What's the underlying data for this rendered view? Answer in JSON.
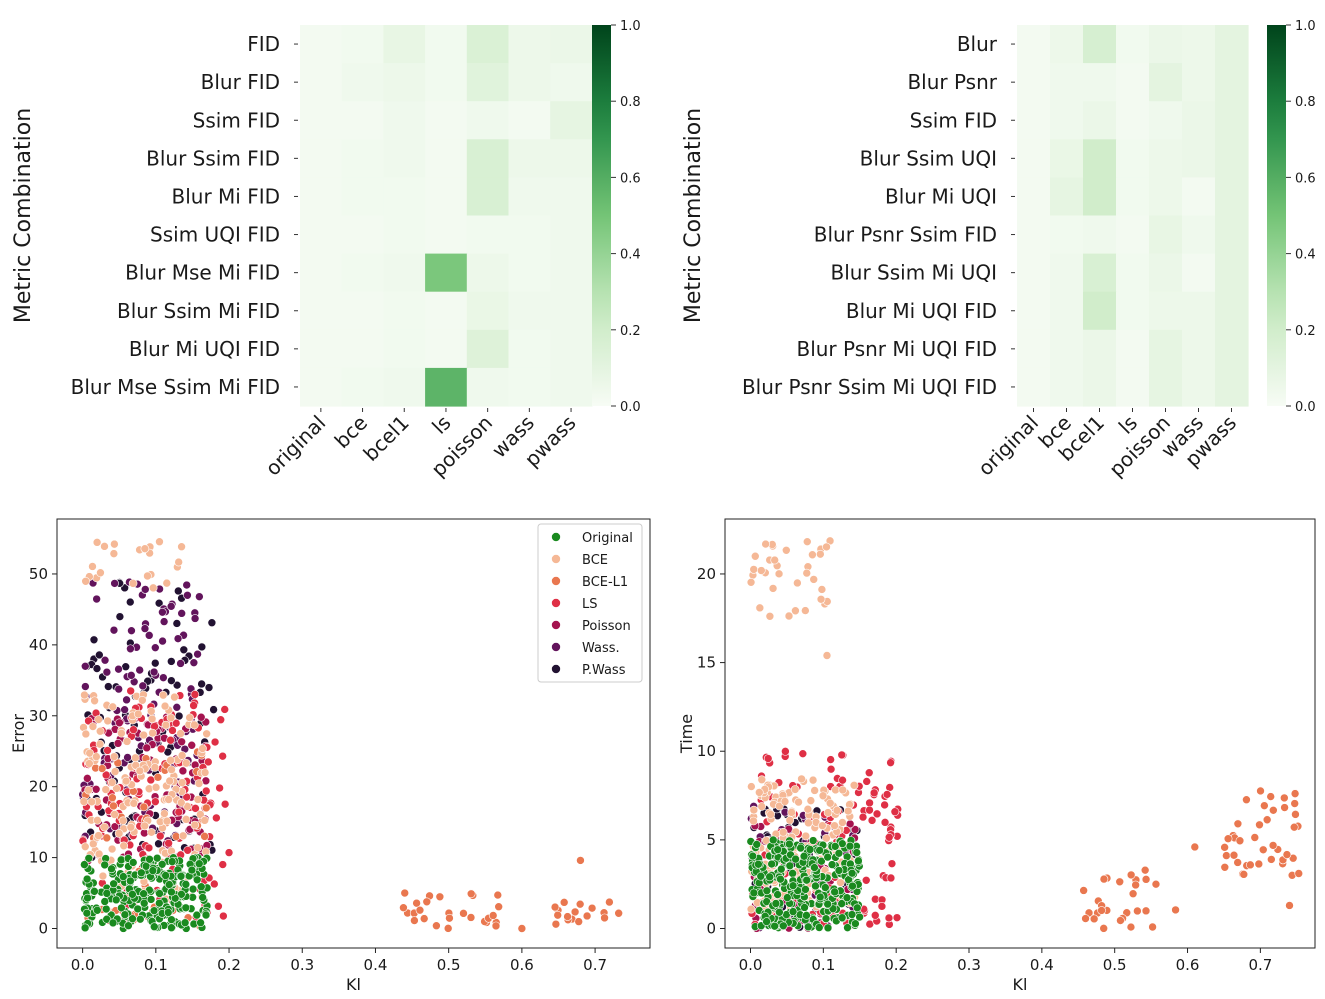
{
  "chart_data": [
    {
      "type": "heatmap",
      "ylabel": "Metric Combination",
      "columns": [
        "original",
        "bce",
        "bcel1",
        "ls",
        "poisson",
        "wass",
        "pwass"
      ],
      "rows": [
        "FID",
        "Blur FID",
        "Ssim FID",
        "Blur Ssim FID",
        "Blur Mi FID",
        "Ssim UQI FID",
        "Blur Mse Mi FID",
        "Blur Ssim Mi FID",
        "Blur Mi UQI FID",
        "Blur Mse Ssim Mi FID"
      ],
      "values": [
        [
          0.02,
          0.03,
          0.08,
          0.03,
          0.15,
          0.05,
          0.06
        ],
        [
          0.02,
          0.04,
          0.05,
          0.03,
          0.12,
          0.05,
          0.04
        ],
        [
          0.02,
          0.02,
          0.04,
          0.02,
          0.04,
          0.02,
          0.09
        ],
        [
          0.02,
          0.03,
          0.04,
          0.02,
          0.16,
          0.05,
          0.05
        ],
        [
          0.02,
          0.03,
          0.03,
          0.02,
          0.16,
          0.04,
          0.04
        ],
        [
          0.02,
          0.02,
          0.03,
          0.02,
          0.03,
          0.03,
          0.04
        ],
        [
          0.02,
          0.03,
          0.04,
          0.48,
          0.05,
          0.03,
          0.04
        ],
        [
          0.02,
          0.02,
          0.03,
          0.02,
          0.07,
          0.04,
          0.04
        ],
        [
          0.02,
          0.02,
          0.03,
          0.02,
          0.13,
          0.03,
          0.04
        ],
        [
          0.02,
          0.03,
          0.04,
          0.57,
          0.04,
          0.03,
          0.04
        ]
      ],
      "colorbar": {
        "min": 0.0,
        "max": 1.0,
        "ticks": [
          "0.0",
          "0.2",
          "0.4",
          "0.6",
          "0.8",
          "1.0"
        ]
      }
    },
    {
      "type": "heatmap",
      "ylabel": "Metric Combination",
      "columns": [
        "original",
        "bce",
        "bcel1",
        "ls",
        "poisson",
        "wass",
        "pwass"
      ],
      "rows": [
        "Blur",
        "Blur Psnr",
        "Ssim FID",
        "Blur Ssim UQI",
        "Blur Mi UQI",
        "Blur Psnr Ssim FID",
        "Blur Ssim Mi UQI",
        "Blur Mi UQI FID",
        "Blur Psnr Mi UQI FID",
        "Blur Psnr Ssim Mi UQI FID"
      ],
      "values": [
        [
          0.02,
          0.05,
          0.17,
          0.03,
          0.06,
          0.05,
          0.1
        ],
        [
          0.02,
          0.04,
          0.04,
          0.02,
          0.1,
          0.05,
          0.1
        ],
        [
          0.02,
          0.04,
          0.06,
          0.02,
          0.04,
          0.06,
          0.1
        ],
        [
          0.02,
          0.07,
          0.2,
          0.03,
          0.05,
          0.06,
          0.1
        ],
        [
          0.02,
          0.09,
          0.2,
          0.03,
          0.05,
          0.02,
          0.1
        ],
        [
          0.02,
          0.03,
          0.04,
          0.02,
          0.08,
          0.04,
          0.1
        ],
        [
          0.02,
          0.04,
          0.16,
          0.03,
          0.06,
          0.02,
          0.1
        ],
        [
          0.02,
          0.04,
          0.2,
          0.03,
          0.05,
          0.05,
          0.1
        ],
        [
          0.02,
          0.04,
          0.06,
          0.02,
          0.09,
          0.05,
          0.1
        ],
        [
          0.02,
          0.04,
          0.06,
          0.02,
          0.09,
          0.05,
          0.1
        ]
      ],
      "colorbar": {
        "min": 0.0,
        "max": 1.0,
        "ticks": [
          "0.0",
          "0.2",
          "0.4",
          "0.6",
          "0.8",
          "1.0"
        ]
      }
    },
    {
      "type": "scatter",
      "xlabel": "Kl",
      "ylabel": "Error",
      "xlim": [
        -0.035,
        0.775
      ],
      "ylim": [
        -2.75,
        57.75
      ],
      "xticks": [
        "0.0",
        "0.1",
        "0.2",
        "0.3",
        "0.4",
        "0.5",
        "0.6",
        "0.7"
      ],
      "yticks": [
        "0",
        "10",
        "20",
        "30",
        "40",
        "50"
      ],
      "legend": "top-right",
      "series": [
        {
          "name": "Original",
          "color": "#1a8a1f",
          "clusters": [
            {
              "x": [
                0.0,
                0.17
              ],
              "y": [
                0,
                10
              ],
              "n": 260
            }
          ]
        },
        {
          "name": "BCE",
          "color": "#f5b896",
          "clusters": [
            {
              "x": [
                0.0,
                0.17
              ],
              "y": [
                4,
                33
              ],
              "n": 170
            },
            {
              "x": [
                0.0,
                0.16
              ],
              "y": [
                48,
                55
              ],
              "n": 22
            }
          ]
        },
        {
          "name": "BCE-L1",
          "color": "#e9774f",
          "clusters": [
            {
              "x": [
                0.0,
                0.17
              ],
              "y": [
                0,
                25
              ],
              "n": 50
            },
            {
              "x": [
                0.43,
                0.57
              ],
              "y": [
                0,
                5
              ],
              "n": 26
            },
            {
              "x": [
                0.64,
                0.75
              ],
              "y": [
                0,
                4
              ],
              "n": 18
            }
          ],
          "points": [
            [
              0.68,
              9.6
            ],
            [
              0.44,
              5
            ],
            [
              0.6,
              0
            ]
          ]
        },
        {
          "name": "LS",
          "color": "#df2f45",
          "clusters": [
            {
              "x": [
                0.0,
                0.2
              ],
              "y": [
                0,
                34
              ],
              "n": 140
            }
          ]
        },
        {
          "name": "Poisson",
          "color": "#a4134f",
          "clusters": [
            {
              "x": [
                0.0,
                0.17
              ],
              "y": [
                9,
                30
              ],
              "n": 90
            }
          ]
        },
        {
          "name": "Wass.",
          "color": "#62145c",
          "clusters": [
            {
              "x": [
                0.0,
                0.16
              ],
              "y": [
                12,
                49
              ],
              "n": 120
            }
          ]
        },
        {
          "name": "P.Wass",
          "color": "#221232",
          "clusters": [
            {
              "x": [
                0.0,
                0.18
              ],
              "y": [
                10,
                49
              ],
              "n": 100
            }
          ]
        }
      ]
    },
    {
      "type": "scatter",
      "xlabel": "Kl",
      "ylabel": "Time",
      "xlim": [
        -0.035,
        0.775
      ],
      "ylim": [
        -1.1,
        23.1
      ],
      "xticks": [
        "0.0",
        "0.1",
        "0.2",
        "0.3",
        "0.4",
        "0.5",
        "0.6",
        "0.7"
      ],
      "yticks": [
        "0",
        "5",
        "10",
        "15",
        "20"
      ],
      "series": [
        {
          "name": "Original",
          "color": "#1a8a1f",
          "clusters": [
            {
              "x": [
                0.0,
                0.15
              ],
              "y": [
                0,
                5
              ],
              "n": 320
            }
          ]
        },
        {
          "name": "BCE",
          "color": "#f5b896",
          "clusters": [
            {
              "x": [
                0.0,
                0.145
              ],
              "y": [
                1,
                8.5
              ],
              "n": 190
            },
            {
              "x": [
                0.0,
                0.11
              ],
              "y": [
                17.5,
                22
              ],
              "n": 34
            }
          ],
          "points": [
            [
              0.105,
              15.4
            ]
          ]
        },
        {
          "name": "BCE-L1",
          "color": "#e9774f",
          "clusters": [
            {
              "x": [
                0.45,
                0.59
              ],
              "y": [
                0,
                3.5
              ],
              "n": 28
            },
            {
              "x": [
                0.65,
                0.755
              ],
              "y": [
                3,
                7.8
              ],
              "n": 40
            }
          ],
          "points": [
            [
              0.61,
              4.6
            ],
            [
              0.74,
              1.3
            ]
          ]
        },
        {
          "name": "LS",
          "color": "#df2f45",
          "clusters": [
            {
              "x": [
                0.0,
                0.21
              ],
              "y": [
                0,
                10
              ],
              "n": 120
            }
          ]
        },
        {
          "name": "Poisson",
          "color": "#a4134f",
          "clusters": [
            {
              "x": [
                0.0,
                0.15
              ],
              "y": [
                0,
                6
              ],
              "n": 70
            }
          ]
        },
        {
          "name": "Wass.",
          "color": "#62145c",
          "clusters": [
            {
              "x": [
                0.0,
                0.15
              ],
              "y": [
                0,
                7
              ],
              "n": 50
            }
          ]
        },
        {
          "name": "P.Wass",
          "color": "#221232",
          "clusters": [
            {
              "x": [
                0.0,
                0.15
              ],
              "y": [
                0,
                7
              ],
              "n": 50
            }
          ]
        }
      ]
    }
  ]
}
